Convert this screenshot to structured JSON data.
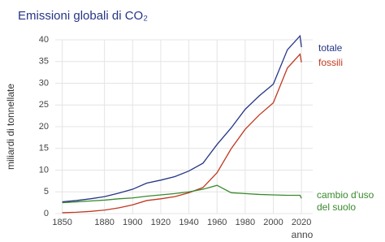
{
  "chart_data": {
    "type": "line",
    "title": "Emissioni globali di CO₂",
    "y_label": "miliardi di tonnellate",
    "x_label": "anno",
    "x": [
      1850,
      1860,
      1870,
      1880,
      1890,
      1900,
      1910,
      1920,
      1930,
      1940,
      1950,
      1960,
      1970,
      1980,
      1990,
      2000,
      2010,
      2019,
      2020
    ],
    "series": [
      {
        "name": "totale",
        "color": "#253585",
        "values": [
          2.7,
          3.0,
          3.4,
          3.9,
          4.7,
          5.6,
          7.0,
          7.7,
          8.5,
          9.8,
          11.6,
          15.9,
          19.7,
          24.0,
          27.1,
          29.8,
          37.7,
          40.9,
          38.3
        ]
      },
      {
        "name": "fossili",
        "color": "#c0391f",
        "values": [
          0.2,
          0.3,
          0.5,
          0.8,
          1.3,
          2.0,
          3.0,
          3.4,
          3.9,
          4.8,
          6.0,
          9.4,
          14.9,
          19.4,
          22.7,
          25.5,
          33.5,
          36.7,
          34.8
        ]
      },
      {
        "name": "cambio d'uso del suolo",
        "color": "#3a8a2e",
        "values": [
          2.5,
          2.7,
          2.9,
          3.1,
          3.4,
          3.6,
          4.0,
          4.3,
          4.6,
          5.0,
          5.6,
          6.5,
          4.8,
          4.6,
          4.4,
          4.3,
          4.2,
          4.2,
          3.5
        ]
      }
    ],
    "xlim": [
      1845,
      2028
    ],
    "ylim": [
      0,
      40
    ],
    "xticks": [
      1850,
      1880,
      1900,
      1920,
      1940,
      1960,
      1980,
      2000,
      2020
    ],
    "yticks": [
      0,
      5,
      10,
      15,
      20,
      25,
      30,
      35,
      40
    ],
    "grid": true
  }
}
